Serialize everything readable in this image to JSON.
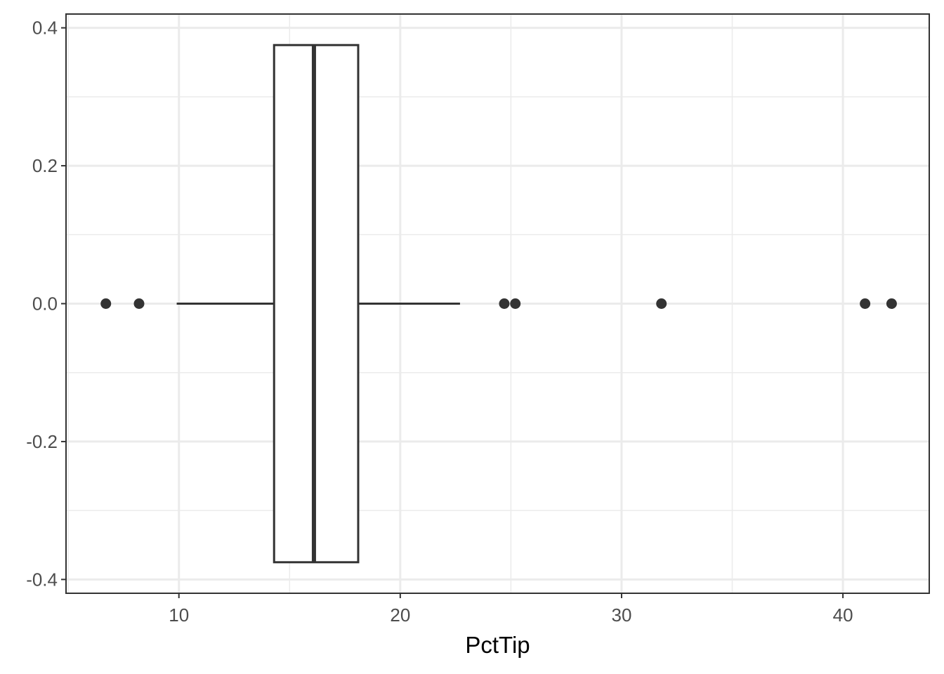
{
  "chart_data": {
    "type": "boxplot",
    "xlabel": "PctTip",
    "ylabel": "",
    "xlim": [
      4.9,
      43.9
    ],
    "ylim": [
      -0.42,
      0.42
    ],
    "x_ticks": [
      10,
      20,
      30,
      40
    ],
    "x_tick_labels": [
      "10",
      "20",
      "30",
      "40"
    ],
    "y_ticks": [
      -0.4,
      -0.2,
      0.0,
      0.2,
      0.4
    ],
    "y_tick_labels": [
      "-0.4",
      "-0.2",
      "0.0",
      "0.2",
      "0.4"
    ],
    "grid": true,
    "box": {
      "whisker_low": 9.9,
      "q1": 14.3,
      "median": 16.1,
      "q3": 18.1,
      "whisker_high": 22.7,
      "y_center": 0.0,
      "half_width": 0.375
    },
    "outliers": [
      6.7,
      8.2,
      24.7,
      25.2,
      31.8,
      41.0,
      42.2
    ],
    "colors": {
      "background": "#ffffff",
      "grid_major": "#ebebeb",
      "grid_minor": "#ebebeb",
      "panel_border": "#333333",
      "box_stroke": "#333333",
      "tick_text": "#4d4d4d",
      "title_text": "#000000"
    }
  }
}
